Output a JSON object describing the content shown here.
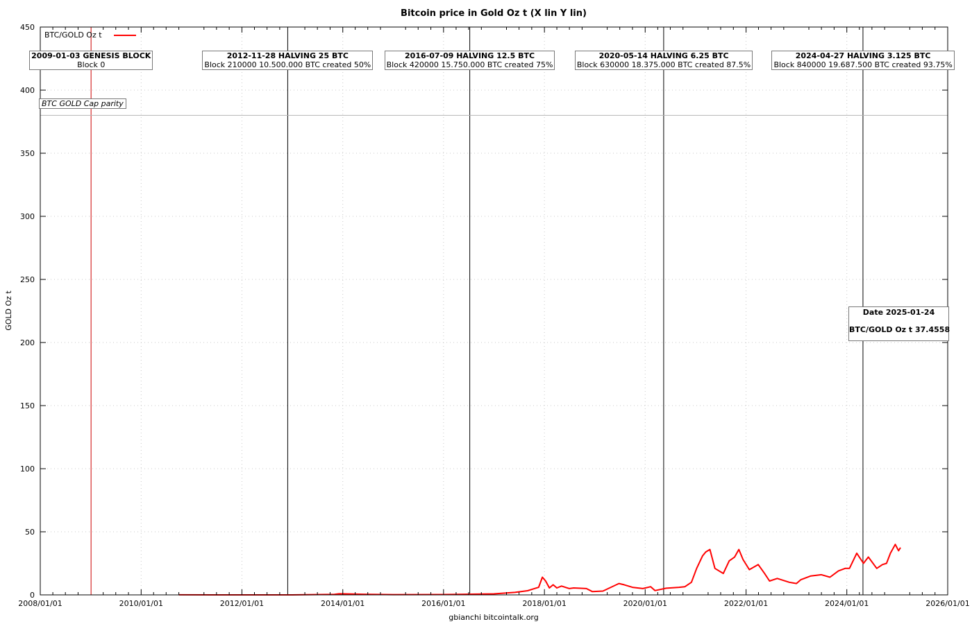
{
  "chart_data": {
    "type": "line",
    "title": "Bitcoin price in Gold Oz t (X lin Y lin)",
    "xlabel": "gbianchi bitcointalk.org",
    "ylabel": "GOLD Oz t",
    "xlim": [
      "2008/01/01",
      "2026/01/01"
    ],
    "ylim": [
      0,
      450
    ],
    "x_ticks": [
      "2008/01/01",
      "2010/01/01",
      "2012/01/01",
      "2014/01/01",
      "2016/01/01",
      "2018/01/01",
      "2020/01/01",
      "2022/01/01",
      "2024/01/01",
      "2026/01/01"
    ],
    "y_ticks": [
      0,
      50,
      100,
      150,
      200,
      250,
      300,
      350,
      400,
      450
    ],
    "grid": true,
    "legend": "top-left",
    "series": [
      {
        "name": "BTC/GOLD Oz t",
        "color": "#ff0000",
        "points": [
          [
            "2010-10-01",
            0.05
          ],
          [
            "2011-06-01",
            0.02
          ],
          [
            "2012-01-01",
            0.01
          ],
          [
            "2013-01-01",
            0.01
          ],
          [
            "2013-04-01",
            0.1
          ],
          [
            "2013-11-01",
            0.4
          ],
          [
            "2013-12-05",
            0.9
          ],
          [
            "2014-06-01",
            0.5
          ],
          [
            "2015-01-01",
            0.2
          ],
          [
            "2016-01-01",
            0.3
          ],
          [
            "2016-06-01",
            0.5
          ],
          [
            "2017-01-01",
            0.8
          ],
          [
            "2017-06-01",
            2
          ],
          [
            "2017-09-01",
            3.3
          ],
          [
            "2017-11-20",
            6
          ],
          [
            "2017-12-17",
            14
          ],
          [
            "2018-01-10",
            11
          ],
          [
            "2018-02-06",
            5.5
          ],
          [
            "2018-03-05",
            8
          ],
          [
            "2018-04-01",
            5.5
          ],
          [
            "2018-05-05",
            7
          ],
          [
            "2018-07-01",
            5
          ],
          [
            "2018-08-01",
            5.5
          ],
          [
            "2018-11-01",
            5
          ],
          [
            "2018-12-15",
            2.6
          ],
          [
            "2019-03-01",
            3
          ],
          [
            "2019-06-25",
            9
          ],
          [
            "2019-08-01",
            8
          ],
          [
            "2019-10-01",
            6
          ],
          [
            "2019-12-15",
            5
          ],
          [
            "2020-02-10",
            6.5
          ],
          [
            "2020-03-12",
            3.4
          ],
          [
            "2020-06-01",
            5.3
          ],
          [
            "2020-09-01",
            6
          ],
          [
            "2020-10-15",
            6.5
          ],
          [
            "2020-12-01",
            10
          ],
          [
            "2021-01-08",
            21
          ],
          [
            "2021-02-20",
            31
          ],
          [
            "2021-03-15",
            34
          ],
          [
            "2021-04-14",
            36
          ],
          [
            "2021-05-20",
            21
          ],
          [
            "2021-07-20",
            17
          ],
          [
            "2021-09-01",
            27
          ],
          [
            "2021-10-10",
            30
          ],
          [
            "2021-11-10",
            36
          ],
          [
            "2021-12-10",
            28
          ],
          [
            "2022-01-25",
            20
          ],
          [
            "2022-03-30",
            24
          ],
          [
            "2022-05-15",
            17
          ],
          [
            "2022-06-20",
            11
          ],
          [
            "2022-08-15",
            13
          ],
          [
            "2022-11-10",
            10
          ],
          [
            "2023-01-01",
            9
          ],
          [
            "2023-02-01",
            12
          ],
          [
            "2023-04-15",
            15
          ],
          [
            "2023-07-01",
            16
          ],
          [
            "2023-09-01",
            14
          ],
          [
            "2023-11-01",
            19
          ],
          [
            "2023-12-20",
            21
          ],
          [
            "2024-01-20",
            21
          ],
          [
            "2024-03-13",
            33
          ],
          [
            "2024-05-01",
            25
          ],
          [
            "2024-06-05",
            30
          ],
          [
            "2024-08-05",
            21
          ],
          [
            "2024-09-15",
            24
          ],
          [
            "2024-10-15",
            25
          ],
          [
            "2024-11-12",
            33
          ],
          [
            "2024-12-17",
            40
          ],
          [
            "2025-01-10",
            35
          ],
          [
            "2025-01-24",
            37.4558
          ]
        ]
      }
    ],
    "reference_lines": [
      {
        "label": "BTC GOLD Cap parity",
        "y": 380
      }
    ],
    "events": [
      {
        "date": "2009-01-03",
        "title": "2009-01-03 GENESIS BLOCK",
        "subtitle": "Block 0",
        "color": "#cc0000"
      },
      {
        "date": "2012-11-28",
        "title": "2012-11-28 HALVING 25 BTC",
        "subtitle": "Block 210000 10.500.000 BTC created 50%",
        "color": "#000000"
      },
      {
        "date": "2016-07-09",
        "title": "2016-07-09 HALVING 12.5 BTC",
        "subtitle": "Block 420000 15.750.000 BTC created 75%",
        "color": "#000000"
      },
      {
        "date": "2020-05-14",
        "title": "2020-05-14 HALVING 6.25 BTC",
        "subtitle": "Block 630000 18.375.000 BTC created 87.5%",
        "color": "#000000"
      },
      {
        "date": "2024-04-27",
        "title": "2024-04-27 HALVING 3.125 BTC",
        "subtitle": "Block 840000 19.687.500 BTC created 93.75%",
        "color": "#000000"
      }
    ],
    "current": {
      "date_label": "Date 2025-01-24",
      "value_label": "BTC/GOLD Oz t 37.4558"
    }
  }
}
